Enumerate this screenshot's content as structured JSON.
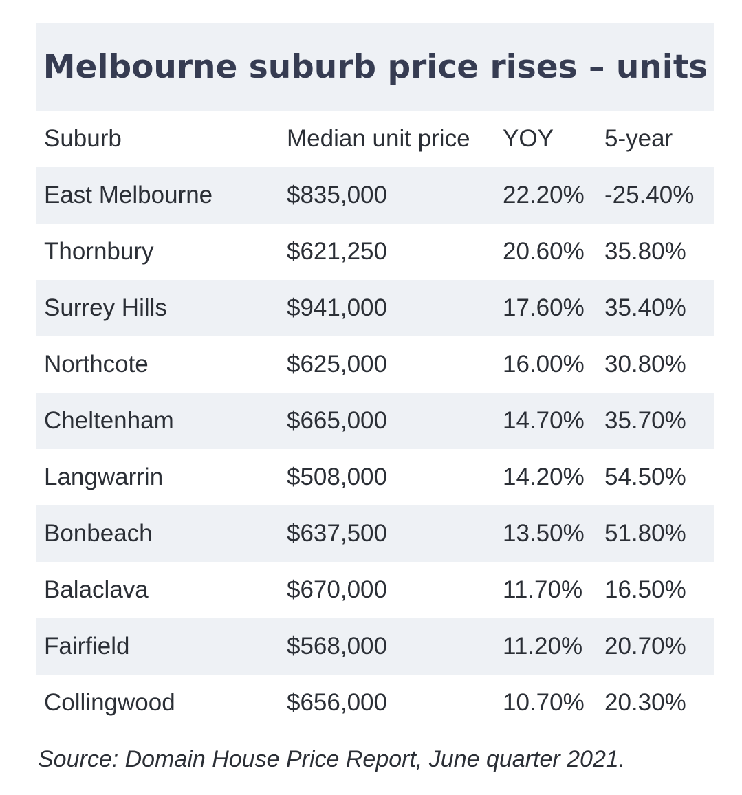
{
  "table": {
    "title": "Melbourne suburb price rises – units",
    "columns": [
      "Suburb",
      "Median unit price",
      "YOY",
      "5-year"
    ],
    "rows": [
      [
        "East Melbourne",
        "$835,000",
        "22.20%",
        "-25.40%"
      ],
      [
        "Thornbury",
        "$621,250",
        "20.60%",
        "35.80%"
      ],
      [
        "Surrey Hills",
        "$941,000",
        "17.60%",
        "35.40%"
      ],
      [
        "Northcote",
        "$625,000",
        "16.00%",
        "30.80%"
      ],
      [
        "Cheltenham",
        "$665,000",
        "14.70%",
        "35.70%"
      ],
      [
        "Langwarrin",
        "$508,000",
        "14.20%",
        "54.50%"
      ],
      [
        "Bonbeach",
        "$637,500",
        "13.50%",
        "51.80%"
      ],
      [
        "Balaclava",
        "$670,000",
        "11.70%",
        "16.50%"
      ],
      [
        "Fairfield",
        "$568,000",
        "11.20%",
        "20.70%"
      ],
      [
        "Collingwood",
        "$656,000",
        "10.70%",
        "20.30%"
      ]
    ],
    "source": "Source: Domain House Price Report, June quarter 2021."
  },
  "colors": {
    "title_text": "#363c52",
    "body_text": "#2b2f36",
    "stripe": "#eef1f5",
    "background": "#ffffff"
  }
}
